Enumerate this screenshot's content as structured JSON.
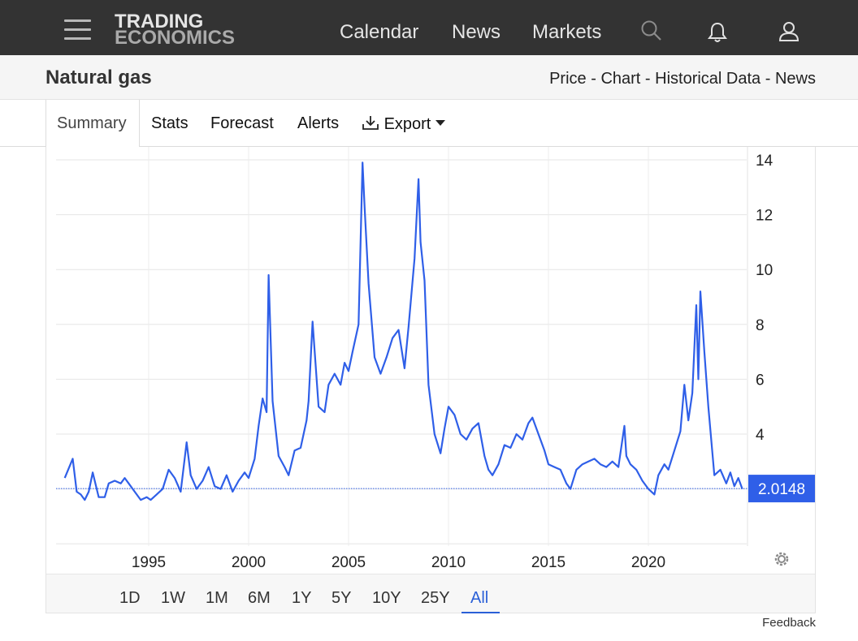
{
  "nav": {
    "logo_line1": "TRADING",
    "logo_line2": "ECONOMICS",
    "links": [
      "Calendar",
      "News",
      "Markets"
    ],
    "icons": [
      "menu-icon",
      "search-icon",
      "bell-icon",
      "user-icon"
    ]
  },
  "header": {
    "title": "Natural gas",
    "links": [
      "Price",
      "Chart",
      "Historical Data",
      "News"
    ],
    "separator": "-"
  },
  "tabs": {
    "active": "Summary",
    "items": [
      "Stats",
      "Forecast",
      "Alerts"
    ],
    "export_label": "Export"
  },
  "chart_data": {
    "type": "line",
    "series_color": "#2f5fe8",
    "ylim": [
      0,
      14
    ],
    "y_ticks": [
      "4",
      "6",
      "8",
      "10",
      "12",
      "14"
    ],
    "x_ticks": [
      "1995",
      "2000",
      "2005",
      "2010",
      "2015",
      "2020"
    ],
    "current_value": "2.0148",
    "x": [
      1990.8,
      1991.2,
      1991.4,
      1991.6,
      1991.8,
      1992.0,
      1992.2,
      1992.5,
      1992.8,
      1993.0,
      1993.3,
      1993.6,
      1993.8,
      1994.0,
      1994.3,
      1994.6,
      1994.9,
      1995.1,
      1995.4,
      1995.7,
      1996.0,
      1996.3,
      1996.6,
      1996.9,
      1997.1,
      1997.4,
      1997.7,
      1998.0,
      1998.3,
      1998.6,
      1998.9,
      1999.2,
      1999.5,
      1999.8,
      2000.0,
      2000.3,
      2000.5,
      2000.7,
      2000.9,
      2001.0,
      2001.2,
      2001.5,
      2001.8,
      2002.0,
      2002.3,
      2002.6,
      2002.9,
      2003.0,
      2003.2,
      2003.5,
      2003.8,
      2004.0,
      2004.3,
      2004.6,
      2004.8,
      2005.0,
      2005.2,
      2005.5,
      2005.7,
      2005.8,
      2006.0,
      2006.3,
      2006.6,
      2006.9,
      2007.2,
      2007.5,
      2007.8,
      2008.0,
      2008.3,
      2008.5,
      2008.6,
      2008.8,
      2009.0,
      2009.3,
      2009.6,
      2009.8,
      2010.0,
      2010.3,
      2010.6,
      2010.9,
      2011.2,
      2011.5,
      2011.8,
      2012.0,
      2012.2,
      2012.5,
      2012.8,
      2013.1,
      2013.4,
      2013.7,
      2014.0,
      2014.2,
      2014.5,
      2014.8,
      2015.0,
      2015.3,
      2015.6,
      2015.9,
      2016.1,
      2016.4,
      2016.7,
      2017.0,
      2017.3,
      2017.6,
      2017.9,
      2018.2,
      2018.5,
      2018.8,
      2018.9,
      2019.1,
      2019.4,
      2019.7,
      2020.0,
      2020.3,
      2020.5,
      2020.8,
      2021.0,
      2021.3,
      2021.6,
      2021.8,
      2022.0,
      2022.2,
      2022.4,
      2022.5,
      2022.6,
      2022.8,
      2023.0,
      2023.3,
      2023.6,
      2023.9,
      2024.1,
      2024.3,
      2024.5,
      2024.7
    ],
    "y": [
      2.4,
      3.1,
      1.9,
      1.8,
      1.6,
      1.9,
      2.6,
      1.7,
      1.7,
      2.2,
      2.3,
      2.2,
      2.4,
      2.2,
      1.9,
      1.6,
      1.7,
      1.6,
      1.8,
      2.0,
      2.7,
      2.4,
      1.9,
      3.7,
      2.5,
      2.0,
      2.3,
      2.8,
      2.1,
      2.0,
      2.5,
      1.9,
      2.3,
      2.6,
      2.4,
      3.1,
      4.3,
      5.3,
      4.8,
      9.8,
      5.2,
      3.2,
      2.8,
      2.5,
      3.4,
      3.5,
      4.5,
      5.2,
      8.1,
      5.0,
      4.8,
      5.8,
      6.2,
      5.8,
      6.6,
      6.3,
      7.0,
      8.0,
      13.9,
      12.3,
      9.5,
      6.8,
      6.2,
      6.8,
      7.5,
      7.8,
      6.4,
      7.9,
      10.4,
      13.3,
      11.0,
      9.6,
      5.8,
      4.0,
      3.3,
      4.2,
      5.0,
      4.7,
      4.0,
      3.8,
      4.2,
      4.4,
      3.2,
      2.7,
      2.5,
      2.9,
      3.6,
      3.5,
      4.0,
      3.8,
      4.4,
      4.6,
      4.0,
      3.4,
      2.9,
      2.8,
      2.7,
      2.2,
      2.0,
      2.7,
      2.9,
      3.0,
      3.1,
      2.9,
      2.8,
      3.0,
      2.8,
      4.3,
      3.2,
      2.9,
      2.7,
      2.3,
      2.0,
      1.8,
      2.5,
      2.9,
      2.7,
      3.4,
      4.1,
      5.8,
      4.5,
      5.5,
      8.7,
      6.0,
      9.2,
      7.0,
      5.0,
      2.5,
      2.7,
      2.2,
      2.6,
      2.1,
      2.4,
      2.0
    ]
  },
  "range": {
    "buttons": [
      "1D",
      "1W",
      "1M",
      "6M",
      "1Y",
      "5Y",
      "10Y",
      "25Y",
      "All"
    ],
    "active": "All"
  },
  "footer": {
    "feedback": "Feedback"
  }
}
